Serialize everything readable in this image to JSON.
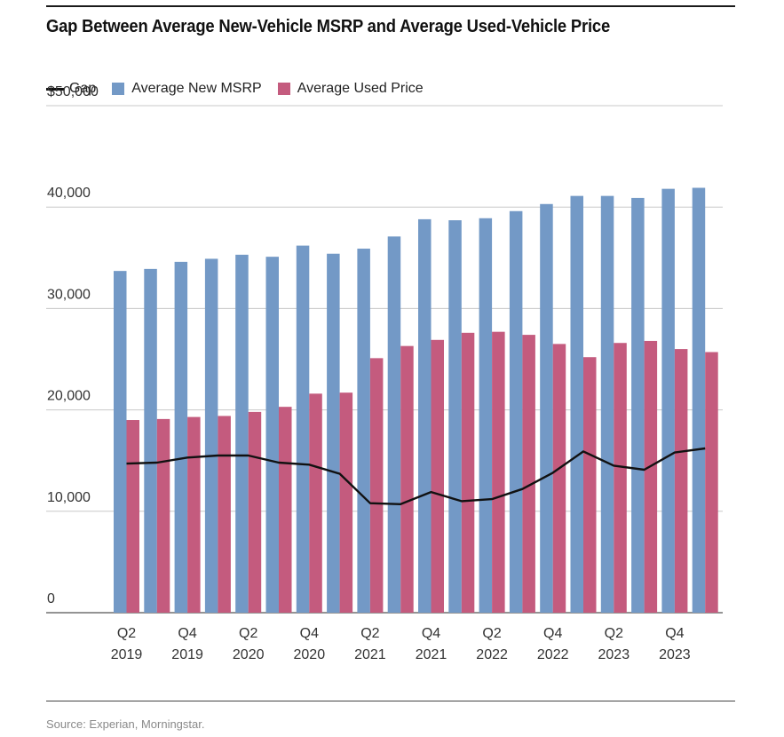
{
  "title": "Gap Between Average New-Vehicle MSRP and Average Used-Vehicle Price",
  "source": "Source: Experian, Morningstar.",
  "colors": {
    "new_msrp": "#7399c6",
    "used_price": "#c45b7e",
    "gap": "#111111",
    "grid": "#c8c8c8"
  },
  "legend": [
    {
      "label": "Gap",
      "kind": "line"
    },
    {
      "label": "Average New MSRP",
      "kind": "box",
      "color": "#7399c6"
    },
    {
      "label": "Average Used Price",
      "kind": "box",
      "color": "#c45b7e"
    }
  ],
  "chart_data": {
    "type": "bar",
    "categories": [
      "Q2 2019",
      "Q3 2019",
      "Q4 2019",
      "Q1 2020",
      "Q2 2020",
      "Q3 2020",
      "Q4 2020",
      "Q1 2021",
      "Q2 2021",
      "Q3 2021",
      "Q4 2021",
      "Q1 2022",
      "Q2 2022",
      "Q3 2022",
      "Q4 2022",
      "Q1 2023",
      "Q2 2023",
      "Q3 2023",
      "Q4 2023",
      "Q1 2024"
    ],
    "x_tick_labels": [
      {
        "index": 0,
        "line1": "Q2",
        "line2": "2019"
      },
      {
        "index": 2,
        "line1": "Q4",
        "line2": "2019"
      },
      {
        "index": 4,
        "line1": "Q2",
        "line2": "2020"
      },
      {
        "index": 6,
        "line1": "Q4",
        "line2": "2020"
      },
      {
        "index": 8,
        "line1": "Q2",
        "line2": "2021"
      },
      {
        "index": 10,
        "line1": "Q4",
        "line2": "2021"
      },
      {
        "index": 12,
        "line1": "Q2",
        "line2": "2022"
      },
      {
        "index": 14,
        "line1": "Q4",
        "line2": "2022"
      },
      {
        "index": 16,
        "line1": "Q2",
        "line2": "2023"
      },
      {
        "index": 18,
        "line1": "Q4",
        "line2": "2023"
      }
    ],
    "series": [
      {
        "name": "Average New MSRP",
        "kind": "bar",
        "values": [
          33700,
          33900,
          34600,
          34900,
          35300,
          35100,
          36200,
          35400,
          35900,
          37100,
          38800,
          38700,
          38900,
          39600,
          40300,
          41100,
          41100,
          40900,
          41800,
          41900
        ]
      },
      {
        "name": "Average Used Price",
        "kind": "bar",
        "values": [
          19000,
          19100,
          19300,
          19400,
          19800,
          20300,
          21600,
          21700,
          25100,
          26300,
          26900,
          27600,
          27700,
          27400,
          26500,
          25200,
          26600,
          26800,
          26000,
          25700
        ]
      },
      {
        "name": "Gap",
        "kind": "line",
        "values": [
          14700,
          14800,
          15300,
          15500,
          15500,
          14800,
          14600,
          13700,
          10800,
          10700,
          11900,
          11000,
          11200,
          12200,
          13800,
          15900,
          14500,
          14100,
          15800,
          16200
        ]
      }
    ],
    "y_ticks": [
      {
        "value": 0,
        "label": "0"
      },
      {
        "value": 10000,
        "label": "10,000"
      },
      {
        "value": 20000,
        "label": "20,000"
      },
      {
        "value": 30000,
        "label": "30,000"
      },
      {
        "value": 40000,
        "label": "40,000"
      },
      {
        "value": 50000,
        "label": "$50,000"
      }
    ],
    "ylim": [
      0,
      50000
    ],
    "grid": true,
    "legend_position": "top-left"
  }
}
